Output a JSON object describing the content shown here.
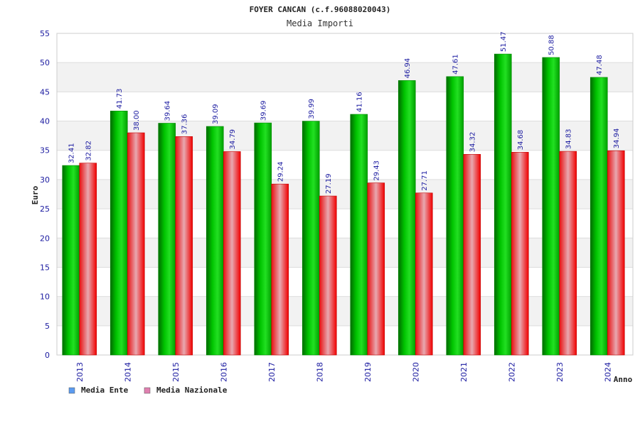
{
  "chart_data": {
    "type": "bar",
    "title": "FOYER CANCAN (c.f.96088020043)",
    "subtitle": "Media Importi",
    "xlabel": "Anno",
    "ylabel": "Euro",
    "ylim": [
      0,
      55
    ],
    "yticks": [
      0,
      5,
      10,
      15,
      20,
      25,
      30,
      35,
      40,
      45,
      50,
      55
    ],
    "categories": [
      "2013",
      "2014",
      "2015",
      "2016",
      "2017",
      "2018",
      "2019",
      "2020",
      "2021",
      "2022",
      "2023",
      "2024"
    ],
    "series": [
      {
        "name": "Media Ente",
        "color": "#00c000",
        "legend_color": "#5b9bf0",
        "values": [
          32.41,
          41.73,
          39.64,
          39.09,
          39.69,
          39.99,
          41.16,
          46.94,
          47.61,
          51.47,
          50.88,
          47.48
        ],
        "labels": [
          "32.41",
          "41.73",
          "39.64",
          "39.09",
          "39.69",
          "39.99",
          "41.16",
          "46.94",
          "47.61",
          "51.47",
          "50.88",
          "47.48"
        ]
      },
      {
        "name": "Media Nazionale",
        "color": "#f02020",
        "legend_color": "#e080b0",
        "values": [
          32.82,
          38.0,
          37.36,
          34.79,
          29.24,
          27.19,
          29.43,
          27.71,
          34.32,
          34.68,
          34.83,
          34.94
        ],
        "labels": [
          "32.82",
          "38.00",
          "37.36",
          "34.79",
          "29.24",
          "27.19",
          "29.43",
          "27.71",
          "34.32",
          "34.68",
          "34.83",
          "34.94"
        ]
      }
    ]
  }
}
